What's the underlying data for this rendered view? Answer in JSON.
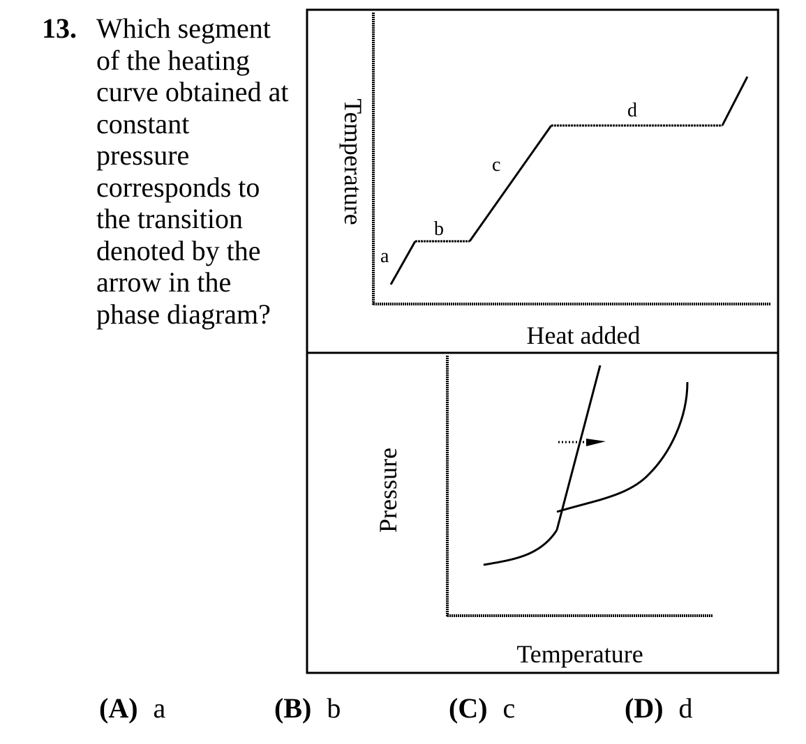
{
  "question": {
    "number": "13.",
    "lines": [
      "Which segment",
      "of the heating",
      "curve obtained at",
      "constant",
      "pressure",
      "corresponds to",
      "the transition",
      "denoted by the",
      "arrow in the",
      "phase diagram?"
    ]
  },
  "chart_data": [
    {
      "type": "line",
      "xlabel": "Heat added",
      "ylabel": "Temperature",
      "segment_labels": [
        "a",
        "b",
        "c",
        "d"
      ]
    },
    {
      "type": "line",
      "xlabel": "Temperature",
      "ylabel": "Pressure"
    }
  ],
  "choices": [
    {
      "letter": "(A)",
      "value": "a"
    },
    {
      "letter": "(B)",
      "value": "b"
    },
    {
      "letter": "(C)",
      "value": "c"
    },
    {
      "letter": "(D)",
      "value": "d"
    }
  ]
}
